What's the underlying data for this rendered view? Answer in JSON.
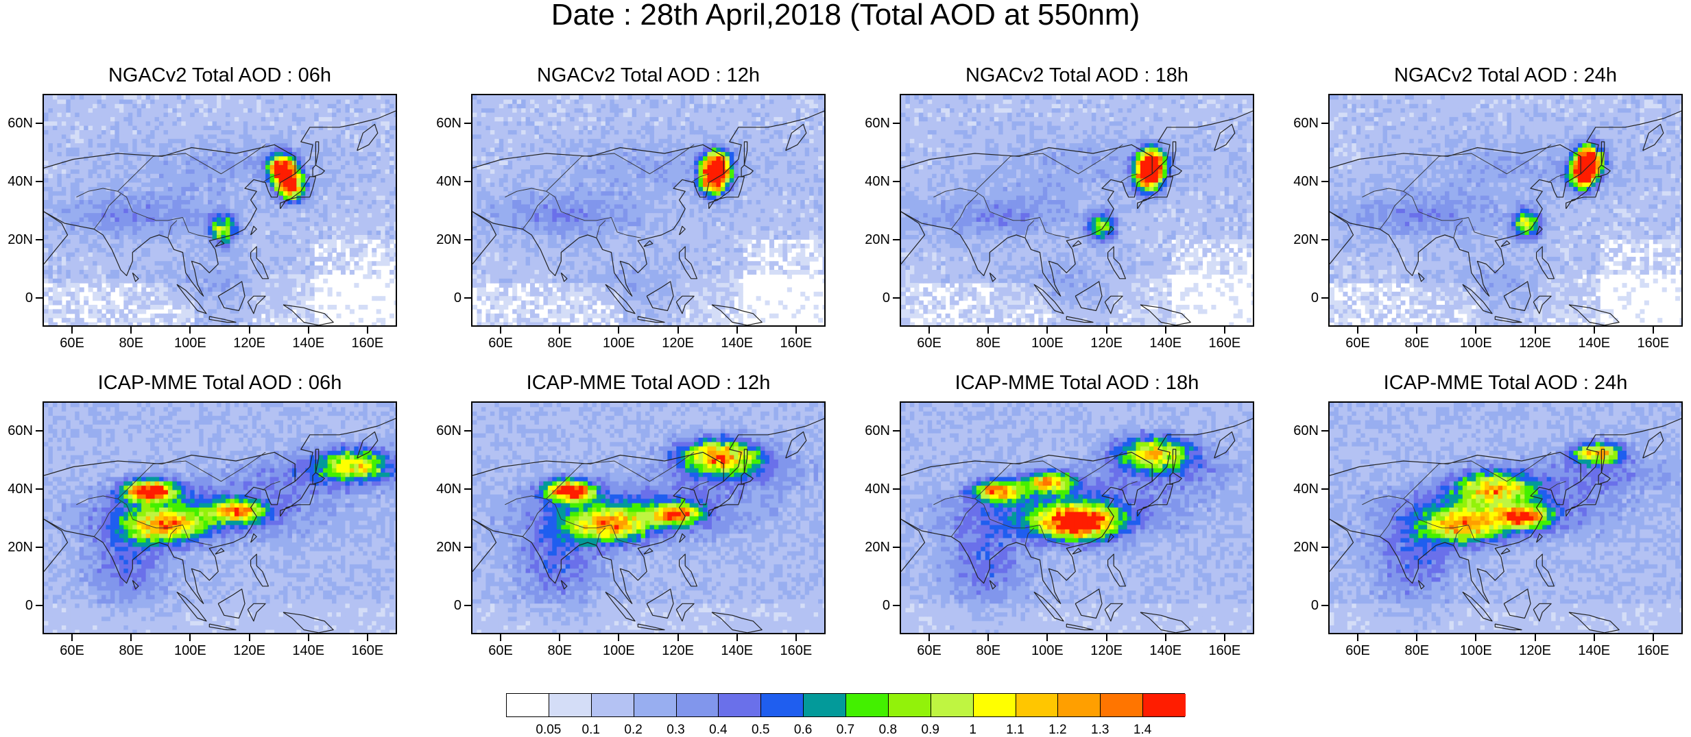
{
  "title": "Date : 28th April,2018 (Total AOD at 550nm)",
  "chart_data": [
    {
      "type": "heatmap",
      "title": "NGACv2 Total AOD : 06h",
      "model": "NGACv2",
      "lead": "06h",
      "xlabel": "",
      "ylabel": "",
      "xlim": [
        50,
        170
      ],
      "ylim": [
        -10,
        70
      ],
      "x_ticks": [
        "60E",
        "80E",
        "100E",
        "120E",
        "140E",
        "160E"
      ],
      "y_ticks": [
        "60N",
        "40N",
        "20N",
        "0"
      ],
      "hotspots": [
        {
          "lon": 130,
          "lat": 44,
          "aod": 1.5
        },
        {
          "lon": 133,
          "lat": 38,
          "aod": 1.2
        },
        {
          "lon": 110,
          "lat": 23,
          "aod": 0.8
        }
      ]
    },
    {
      "type": "heatmap",
      "title": "NGACv2 Total AOD : 12h",
      "model": "NGACv2",
      "lead": "12h",
      "xlabel": "",
      "ylabel": "",
      "xlim": [
        50,
        170
      ],
      "ylim": [
        -10,
        70
      ],
      "x_ticks": [
        "60E",
        "80E",
        "100E",
        "120E",
        "140E",
        "160E"
      ],
      "y_ticks": [
        "60N",
        "40N",
        "20N",
        "0"
      ],
      "hotspots": [
        {
          "lon": 132,
          "lat": 45,
          "aod": 1.5
        },
        {
          "lon": 131,
          "lat": 40,
          "aod": 1.3
        }
      ]
    },
    {
      "type": "heatmap",
      "title": "NGACv2 Total AOD : 18h",
      "model": "NGACv2",
      "lead": "18h",
      "xlabel": "",
      "ylabel": "",
      "xlim": [
        50,
        170
      ],
      "ylim": [
        -10,
        70
      ],
      "x_ticks": [
        "60E",
        "80E",
        "100E",
        "120E",
        "140E",
        "160E"
      ],
      "y_ticks": [
        "60N",
        "40N",
        "20N",
        "0"
      ],
      "hotspots": [
        {
          "lon": 134,
          "lat": 46,
          "aod": 1.5
        },
        {
          "lon": 133,
          "lat": 41,
          "aod": 1.3
        },
        {
          "lon": 117,
          "lat": 24,
          "aod": 0.7
        }
      ]
    },
    {
      "type": "heatmap",
      "title": "NGACv2 Total AOD : 24h",
      "model": "NGACv2",
      "lead": "24h",
      "xlabel": "",
      "ylabel": "",
      "xlim": [
        50,
        170
      ],
      "ylim": [
        -10,
        70
      ],
      "x_ticks": [
        "60E",
        "80E",
        "100E",
        "120E",
        "140E",
        "160E"
      ],
      "y_ticks": [
        "60N",
        "40N",
        "20N",
        "0"
      ],
      "hotspots": [
        {
          "lon": 137,
          "lat": 47,
          "aod": 1.5
        },
        {
          "lon": 135,
          "lat": 42,
          "aod": 1.4
        },
        {
          "lon": 116,
          "lat": 25,
          "aod": 0.8
        }
      ]
    },
    {
      "type": "heatmap",
      "title": "ICAP-MME Total AOD : 06h",
      "model": "ICAP-MME",
      "lead": "06h",
      "xlabel": "",
      "ylabel": "",
      "xlim": [
        50,
        170
      ],
      "ylim": [
        -10,
        70
      ],
      "x_ticks": [
        "60E",
        "80E",
        "100E",
        "120E",
        "140E",
        "160E"
      ],
      "y_ticks": [
        "60N",
        "40N",
        "20N",
        "0"
      ],
      "hotspots": [
        {
          "lon": 85,
          "lat": 39,
          "aod": 1.5
        },
        {
          "lon": 90,
          "lat": 27,
          "aod": 0.9
        },
        {
          "lon": 115,
          "lat": 32,
          "aod": 0.9
        },
        {
          "lon": 155,
          "lat": 48,
          "aod": 0.8
        }
      ]
    },
    {
      "type": "heatmap",
      "title": "ICAP-MME Total AOD : 12h",
      "model": "ICAP-MME",
      "lead": "12h",
      "xlabel": "",
      "ylabel": "",
      "xlim": [
        50,
        170
      ],
      "ylim": [
        -10,
        70
      ],
      "x_ticks": [
        "60E",
        "80E",
        "100E",
        "120E",
        "140E",
        "160E"
      ],
      "y_ticks": [
        "60N",
        "40N",
        "20N",
        "0"
      ],
      "hotspots": [
        {
          "lon": 82,
          "lat": 39,
          "aod": 1.4
        },
        {
          "lon": 95,
          "lat": 27,
          "aod": 0.9
        },
        {
          "lon": 118,
          "lat": 31,
          "aod": 1.0
        },
        {
          "lon": 133,
          "lat": 51,
          "aod": 1.1
        }
      ]
    },
    {
      "type": "heatmap",
      "title": "ICAP-MME Total AOD : 18h",
      "model": "ICAP-MME",
      "lead": "18h",
      "xlabel": "",
      "ylabel": "",
      "xlim": [
        50,
        170
      ],
      "ylim": [
        -10,
        70
      ],
      "x_ticks": [
        "60E",
        "80E",
        "100E",
        "120E",
        "140E",
        "160E"
      ],
      "y_ticks": [
        "60N",
        "40N",
        "20N",
        "0"
      ],
      "hotspots": [
        {
          "lon": 82,
          "lat": 39,
          "aod": 1.1
        },
        {
          "lon": 109,
          "lat": 28,
          "aod": 1.4
        },
        {
          "lon": 100,
          "lat": 42,
          "aod": 1.0
        },
        {
          "lon": 135,
          "lat": 52,
          "aod": 0.9
        }
      ]
    },
    {
      "type": "heatmap",
      "title": "ICAP-MME Total AOD : 24h",
      "model": "ICAP-MME",
      "lead": "24h",
      "xlabel": "",
      "ylabel": "",
      "xlim": [
        50,
        170
      ],
      "ylim": [
        -10,
        70
      ],
      "x_ticks": [
        "60E",
        "80E",
        "100E",
        "120E",
        "140E",
        "160E"
      ],
      "y_ticks": [
        "60N",
        "40N",
        "20N",
        "0"
      ],
      "hotspots": [
        {
          "lon": 115,
          "lat": 30,
          "aod": 1.1
        },
        {
          "lon": 95,
          "lat": 27,
          "aod": 0.9
        },
        {
          "lon": 140,
          "lat": 52,
          "aod": 1.0
        },
        {
          "lon": 105,
          "lat": 40,
          "aod": 0.9
        }
      ]
    }
  ],
  "colorbar": {
    "labels": [
      "0.05",
      "0.1",
      "0.2",
      "0.3",
      "0.4",
      "0.5",
      "0.6",
      "0.7",
      "0.8",
      "0.9",
      "1",
      "1.1",
      "1.2",
      "1.3",
      "1.4"
    ],
    "levels": [
      0.05,
      0.1,
      0.2,
      0.3,
      0.4,
      0.5,
      0.6,
      0.7,
      0.8,
      0.9,
      1,
      1.1,
      1.2,
      1.3,
      1.4
    ],
    "colors": [
      "#ffffff",
      "#d4ddf7",
      "#b4c2f3",
      "#98aef0",
      "#8196ec",
      "#6a70ea",
      "#1f5eef",
      "#039a9a",
      "#43f000",
      "#92f20a",
      "#bff541",
      "#ffff00",
      "#ffc600",
      "#ff9f00",
      "#ff7500",
      "#ff1d00"
    ]
  }
}
